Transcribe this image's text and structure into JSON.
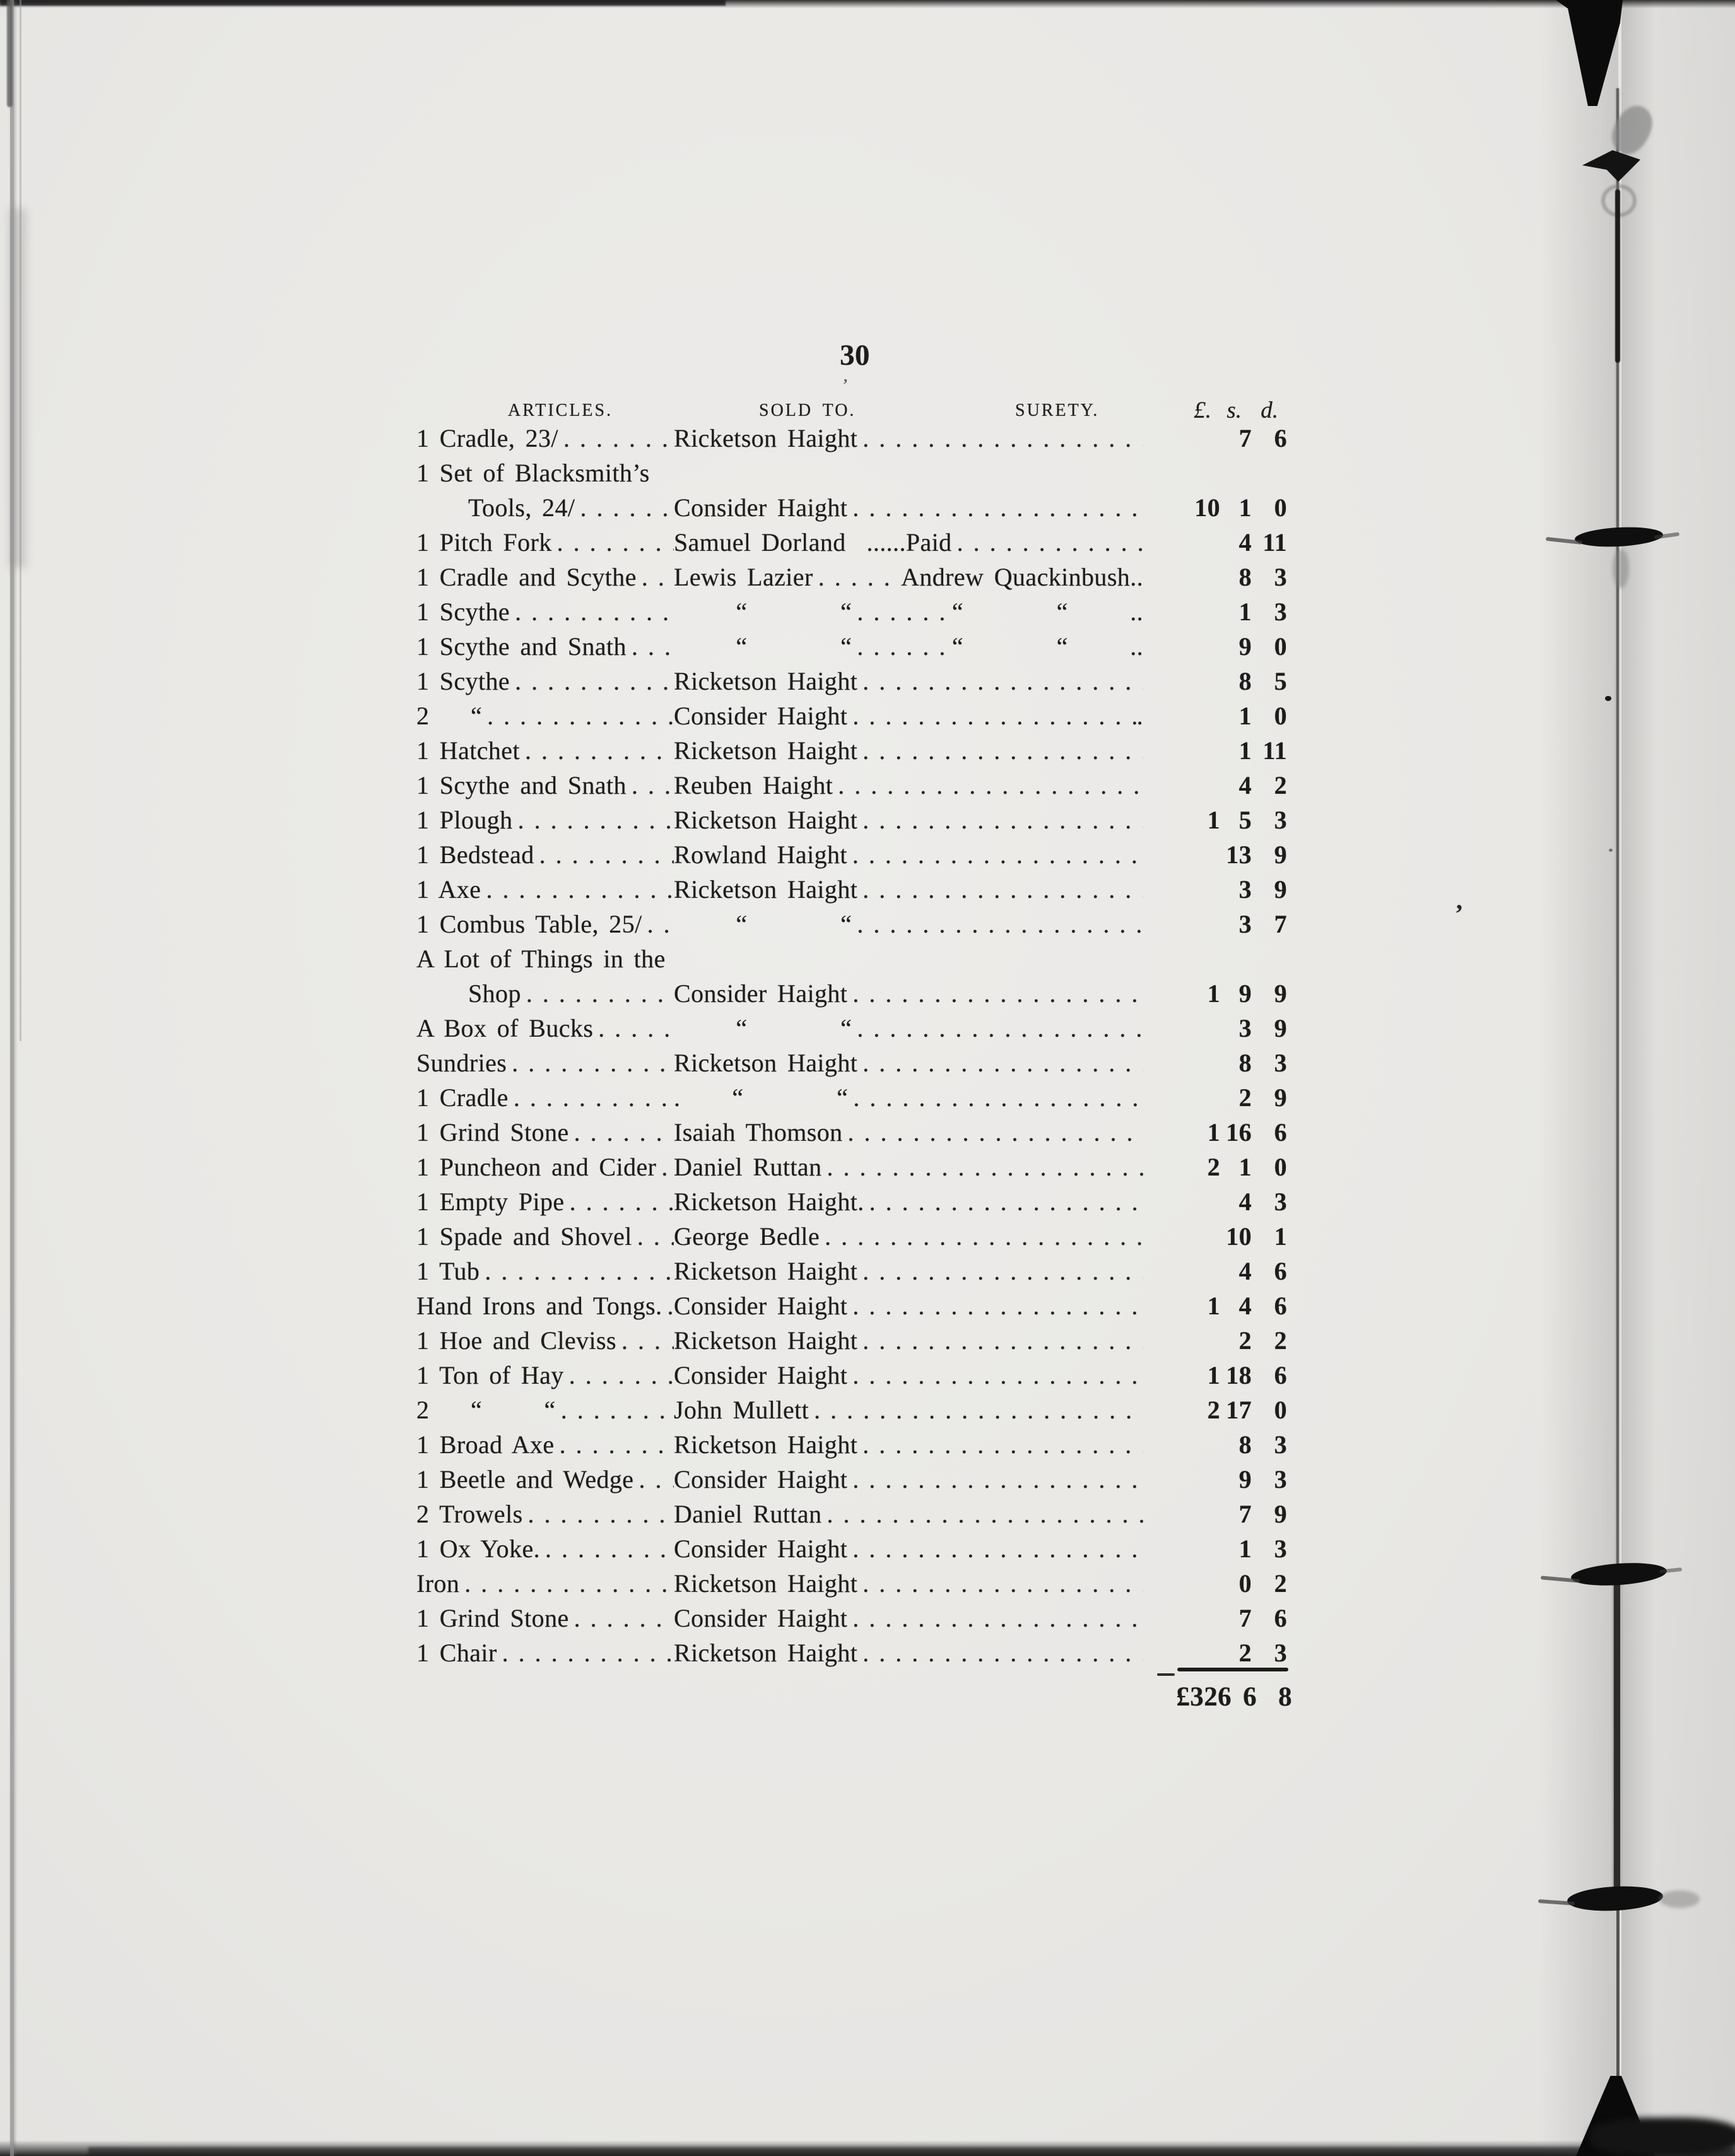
{
  "colors": {
    "paper": "#e9e8e5",
    "ink": "#1c1c1c",
    "binding": "#141414"
  },
  "page": {
    "number": "30"
  },
  "table": {
    "headers": {
      "articles": "ARTICLES.",
      "sold_to": "SOLD TO.",
      "surety": "SURETY.",
      "pounds": "£.",
      "shillings": "s.",
      "pence": "d."
    },
    "rows": [
      {
        "art": "1 Cradle, 23/",
        "mid1": "Ricketson Haight",
        "l": "",
        "s": "7",
        "d": "6"
      },
      {
        "art": "1 Set of Blacksmith’s",
        "plain": true
      },
      {
        "art": "Tools, 24/",
        "indent": true,
        "mid1": "Consider Haight",
        "l": "10",
        "s": "1",
        "d": "0"
      },
      {
        "art": "1 Pitch Fork",
        "mid1": "Samuel Dorland  ......Paid",
        "l": "",
        "s": "4",
        "d": "11"
      },
      {
        "art": "1 Cradle and Scythe",
        "mid1": "Lewis Lazier",
        "mid2": "Andrew Quackinbush..",
        "l": "",
        "s": "8",
        "d": "3"
      },
      {
        "art": "1 Scythe",
        "mid1": "      “         “",
        "mid2": "“         “      ..",
        "l": "",
        "s": "1",
        "d": "3"
      },
      {
        "art": "1 Scythe and Snath",
        "mid1": "      “         “",
        "mid2": "“         “      ..",
        "l": "",
        "s": "9",
        "d": "0"
      },
      {
        "art": "1 Scythe",
        "mid1": "Ricketson Haight",
        "l": "",
        "s": "8",
        "d": "5"
      },
      {
        "art": "2    “",
        "mid1": "Consider Haight",
        "mid2": ".",
        "l": "",
        "s": "1",
        "d": "0"
      },
      {
        "art": "1 Hatchet",
        "mid1": "Ricketson Haight",
        "l": "",
        "s": "1",
        "d": "11"
      },
      {
        "art": "1 Scythe and Snath",
        "mid1": "Reuben Haight",
        "l": "",
        "s": "4",
        "d": "2"
      },
      {
        "art": "1 Plough",
        "mid1": "Ricketson Haight",
        "l": "1",
        "s": "5",
        "d": "3"
      },
      {
        "art": "1 Bedstead",
        "mid1": "Rowland Haight",
        "l": "",
        "s": "13",
        "d": "9"
      },
      {
        "art": "1 Axe",
        "mid1": "Ricketson Haight",
        "l": "",
        "s": "3",
        "d": "9"
      },
      {
        "art": "1 Combus Table, 25/",
        "mid1": "      “         “",
        "l": "",
        "s": "3",
        "d": "7"
      },
      {
        "art": "A Lot of Things in the",
        "plain": true
      },
      {
        "art": "Shop",
        "indent": true,
        "mid1": "Consider Haight",
        "l": "1",
        "s": "9",
        "d": "9"
      },
      {
        "art": "A Box of Bucks",
        "mid1": "      “         “",
        "l": "",
        "s": "3",
        "d": "9"
      },
      {
        "art": "Sundries",
        "mid1": "Ricketson Haight",
        "l": "",
        "s": "8",
        "d": "3"
      },
      {
        "art": "1 Cradle",
        "mid1": ".     “         “",
        "l": "",
        "s": "2",
        "d": "9"
      },
      {
        "art": "1 Grind Stone",
        "mid1": "Isaiah Thomson",
        "l": "1",
        "s": "16",
        "d": "6"
      },
      {
        "art": "1 Puncheon and Cider",
        "mid1": "Daniel Ruttan",
        "l": "2",
        "s": "1",
        "d": "0"
      },
      {
        "art": "1 Empty Pipe",
        "mid1": "Ricketson Haight.",
        "l": "",
        "s": "4",
        "d": "3"
      },
      {
        "art": "1 Spade and Shovel",
        "mid1": "George Bedle",
        "l": "",
        "s": "10",
        "d": "1"
      },
      {
        "art": "1 Tub",
        "mid1": "Ricketson Haight",
        "l": "",
        "s": "4",
        "d": "6"
      },
      {
        "art": "Hand Irons and Tongs.",
        "mid1": "Consider Haight",
        "l": "1",
        "s": "4",
        "d": "6"
      },
      {
        "art": "1 Hoe and Cleviss",
        "mid1": "Ricketson Haight",
        "l": "",
        "s": "2",
        "d": "2"
      },
      {
        "art": "1 Ton of Hay",
        "mid1": "Consider Haight",
        "l": "1",
        "s": "18",
        "d": "6"
      },
      {
        "art": "2    “      “",
        "mid1": "John Mullett",
        "l": "2",
        "s": "17",
        "d": "0"
      },
      {
        "art": "1 Broad Axe",
        "mid1": "Ricketson Haight",
        "l": "",
        "s": "8",
        "d": "3"
      },
      {
        "art": "1 Beetle and Wedge",
        "mid1": "Consider Haight",
        "l": "",
        "s": "9",
        "d": "3"
      },
      {
        "art": "2 Trowels",
        "mid1": "Daniel Ruttan",
        "l": "",
        "s": "7",
        "d": "9"
      },
      {
        "art": "1 Ox Yoke.",
        "mid1": "Consider Haight",
        "l": "",
        "s": "1",
        "d": "3"
      },
      {
        "art": "Iron",
        "mid1": "Ricketson Haight",
        "l": "",
        "s": "0",
        "d": "2"
      },
      {
        "art": "1 Grind Stone",
        "mid1": "Consider Haight",
        "l": "",
        "s": "7",
        "d": "6"
      },
      {
        "art": "1 Chair",
        "mid1": "Ricketson Haight",
        "l": "",
        "s": "2",
        "d": "3"
      }
    ],
    "total": {
      "pounds": "£326",
      "shillings": "6",
      "pence": "8"
    }
  },
  "scan_marks": {
    "tick_a": "’",
    "tick_b": "’"
  }
}
